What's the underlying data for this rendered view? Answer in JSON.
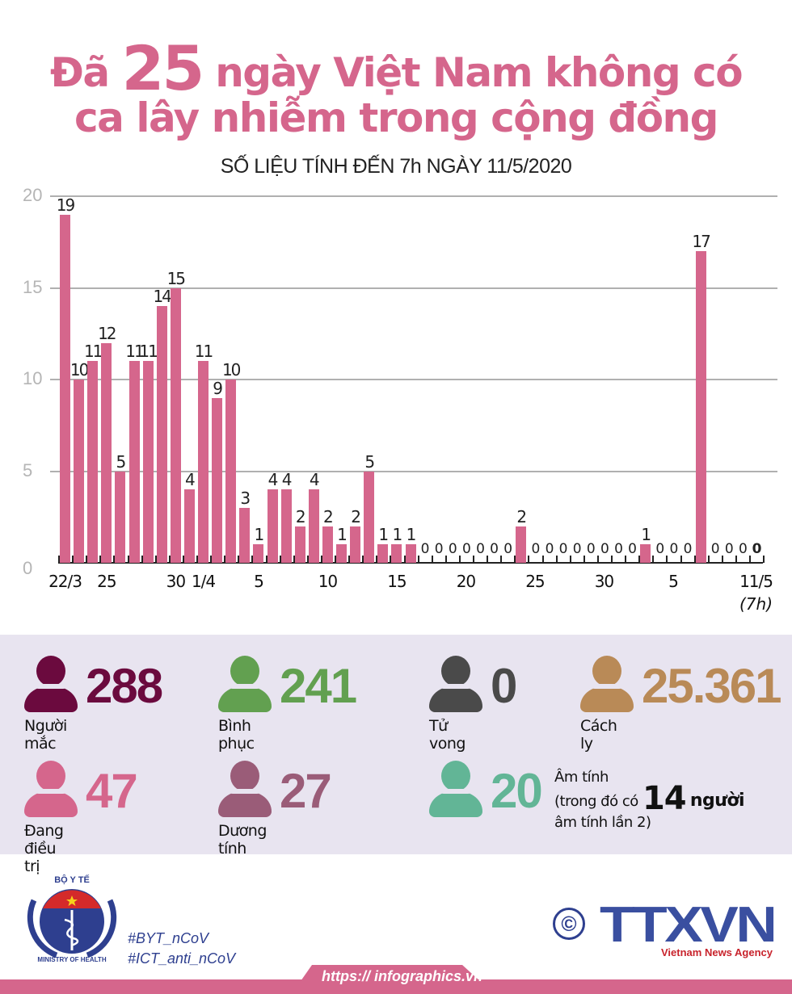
{
  "header": {
    "title_part1": "Đã",
    "title_number": "25",
    "title_part2": "ngày Việt Nam không có",
    "title_line2": "ca lây nhiễm trong cộng đồng",
    "subtitle": "SỐ LIỆU TÍNH ĐẾN 7h NGÀY 11/5/2020"
  },
  "colors": {
    "accent_pink": "#d5668c",
    "infected": "#6b0a3e",
    "recovered": "#62a050",
    "deaths": "#4a4a4a",
    "quarantine": "#b98a57",
    "treating": "#d5668c",
    "positive": "#9a5c78",
    "negative": "#62b596",
    "stats_bg": "#e8e4f0",
    "brand_blue": "#2e3f8f"
  },
  "chart_data": {
    "type": "bar",
    "title": "Đã 25 ngày Việt Nam không có ca lây nhiễm trong cộng đồng",
    "subtitle": "SỐ LIỆU TÍNH ĐẾN 7h NGÀY 11/5/2020",
    "xlabel": "",
    "ylabel": "",
    "ylim": [
      0,
      20
    ],
    "yticks": [
      0,
      5,
      10,
      15,
      20
    ],
    "grid": true,
    "categories": [
      "22/3",
      "23/3",
      "24/3",
      "25/3",
      "26/3",
      "27/3",
      "28/3",
      "29/3",
      "30/3",
      "31/3",
      "1/4",
      "2/4",
      "3/4",
      "4/4",
      "5/4",
      "6/4",
      "7/4",
      "8/4",
      "9/4",
      "10/4",
      "11/4",
      "12/4",
      "13/4",
      "14/4",
      "15/4",
      "16/4",
      "17/4",
      "18/4",
      "19/4",
      "20/4",
      "21/4",
      "22/4",
      "23/4",
      "24/4",
      "25/4",
      "26/4",
      "27/4",
      "28/4",
      "29/4",
      "30/4",
      "1/5",
      "2/5",
      "3/5",
      "4/5",
      "5/5",
      "6/5",
      "7/5",
      "8/5",
      "9/5",
      "10/5",
      "11/5"
    ],
    "values": [
      19,
      10,
      11,
      12,
      5,
      11,
      11,
      14,
      15,
      4,
      11,
      9,
      10,
      3,
      1,
      4,
      4,
      2,
      4,
      2,
      1,
      2,
      5,
      1,
      1,
      1,
      0,
      0,
      0,
      0,
      0,
      0,
      0,
      2,
      0,
      0,
      0,
      0,
      0,
      0,
      0,
      0,
      1,
      0,
      0,
      0,
      17,
      0,
      0,
      0,
      0
    ],
    "x_tick_labels": [
      {
        "index": 0,
        "label": "22/3"
      },
      {
        "index": 3,
        "label": "25"
      },
      {
        "index": 8,
        "label": "30"
      },
      {
        "index": 10,
        "label": "1/4"
      },
      {
        "index": 14,
        "label": "5"
      },
      {
        "index": 19,
        "label": "10"
      },
      {
        "index": 24,
        "label": "15"
      },
      {
        "index": 29,
        "label": "20"
      },
      {
        "index": 34,
        "label": "25"
      },
      {
        "index": 39,
        "label": "30"
      },
      {
        "index": 44,
        "label": "5"
      },
      {
        "index": 50,
        "label": "11/5"
      }
    ],
    "last_label_note": "(7h)"
  },
  "stats": {
    "infected": {
      "value": "288",
      "label": "Người mắc",
      "icon": "person-icon"
    },
    "recovered": {
      "value": "241",
      "label": "Bình phục",
      "icon": "person-icon"
    },
    "deaths": {
      "value": "0",
      "label": "Tử vong",
      "icon": "person-icon"
    },
    "quarantine": {
      "value": "25.361",
      "label": "Cách ly",
      "icon": "person-icon"
    },
    "treating": {
      "value": "47",
      "label": "Đang điều trị",
      "icon": "person-icon"
    },
    "positive": {
      "value": "27",
      "label": "Dương tính",
      "icon": "person-icon"
    },
    "negative": {
      "value": "20",
      "label": "Âm tính",
      "note_prefix": "(trong đó có",
      "note_number": "14",
      "note_unit": "người",
      "note_suffix": "âm tính lần 2)",
      "icon": "person-icon"
    }
  },
  "footer": {
    "moh_top": "BỘ Y TẾ",
    "moh_bottom": "MINISTRY OF HEALTH",
    "hashtags": [
      "#BYT_nCoV",
      "#ICT_anti_nCoV"
    ],
    "copyright": "©",
    "agency_logo": "TTXVN",
    "agency_name": "Vietnam News Agency",
    "url": "https:// infographics.vn"
  }
}
